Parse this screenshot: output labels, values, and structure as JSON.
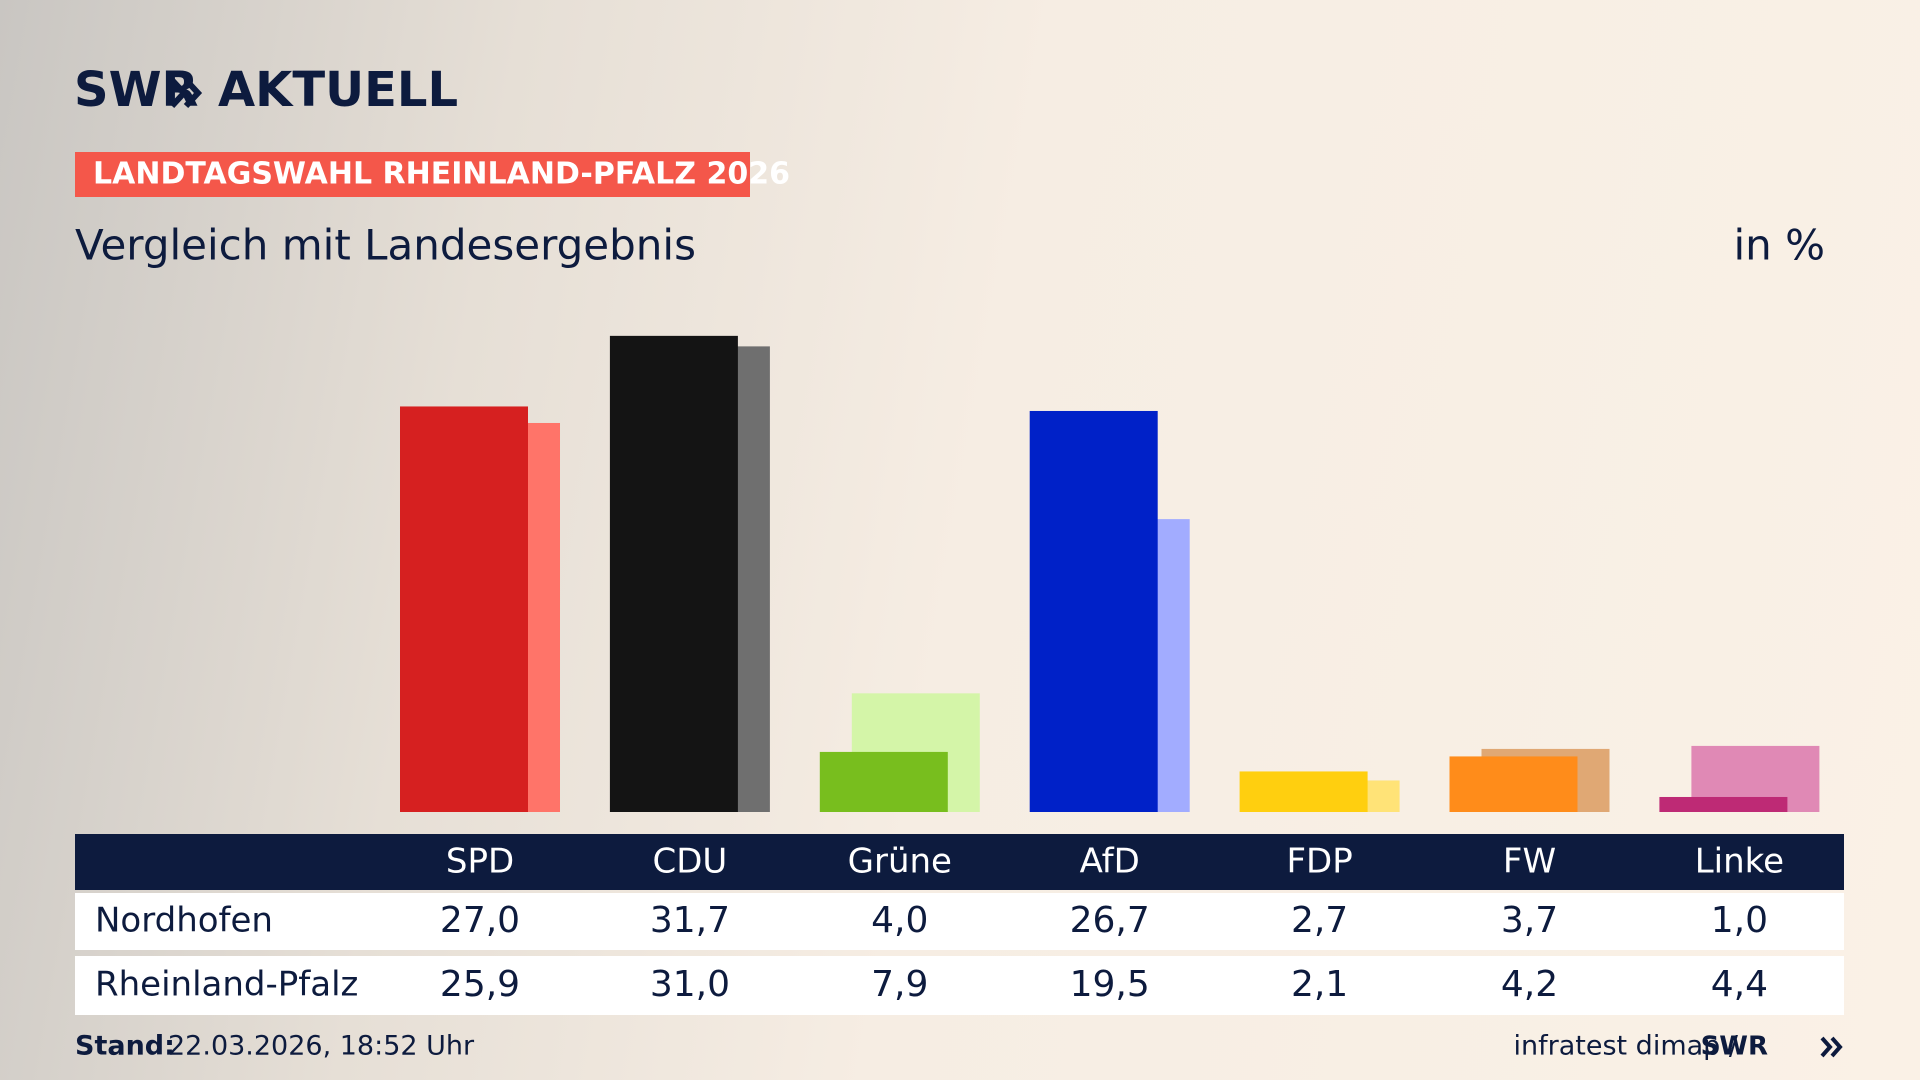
{
  "chart_data": {
    "type": "bar",
    "logo": "SWR",
    "section": "AKTUELL",
    "kicker": "LANDTAGSWAHL RHEINLAND-PFALZ 2026",
    "title": "Vergleich mit Landesergebnis",
    "unit": "in %",
    "categories": [
      "SPD",
      "CDU",
      "Grüne",
      "AfD",
      "FDP",
      "FW",
      "Linke"
    ],
    "series": [
      {
        "name": "Nordhofen",
        "colors": [
          "#d62020",
          "#141414",
          "#78be1e",
          "#0021c8",
          "#ffcf0f",
          "#ff8c1a",
          "#be2a75"
        ],
        "values": [
          27.0,
          31.7,
          4.0,
          26.7,
          2.7,
          3.7,
          1.0
        ],
        "value_labels": [
          "27,0",
          "31,7",
          "4,0",
          "26,7",
          "2,7",
          "3,7",
          "1,0"
        ]
      },
      {
        "name": "Rheinland-Pfalz",
        "colors": [
          "#ff7469",
          "#6f6f6f",
          "#d4f5a8",
          "#a2acff",
          "#ffe377",
          "#e0a874",
          "#e089b5"
        ],
        "values": [
          25.9,
          31.0,
          7.9,
          19.5,
          2.1,
          4.2,
          4.4
        ],
        "value_labels": [
          "25,9",
          "31,0",
          "7,9",
          "19,5",
          "2,1",
          "4,2",
          "4,4"
        ]
      }
    ],
    "source_label": "Stand:",
    "source_date": "22.03.2026, 18:52 Uhr",
    "credit": "infratest dimap /",
    "credit_brand": "SWR"
  }
}
